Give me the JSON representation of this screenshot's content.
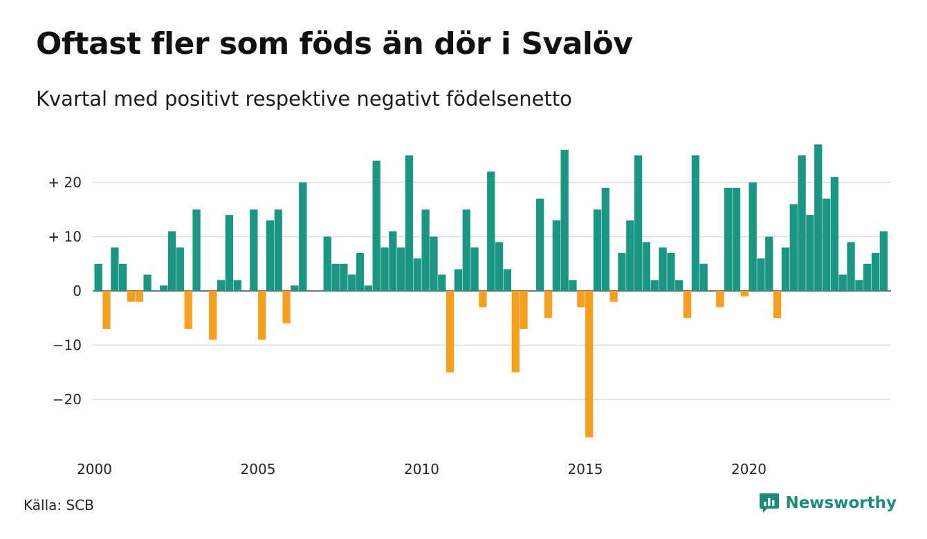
{
  "title": "Oftast fler som föds än dör i Svalöv",
  "subtitle": "Kvartal med positivt respektive negativt födelsenetto",
  "source": "Källa: SCB",
  "brand": {
    "name": "Newsworthy",
    "icon": "newsworthy-logo-icon"
  },
  "colors": {
    "positive": "#1a9683",
    "negative": "#f5a01f",
    "grid": "#dcdcdc",
    "axis": "#222222"
  },
  "chart_data": {
    "type": "bar",
    "title": "Oftast fler som föds än dör i Svalöv",
    "subtitle": "Kvartal med positivt respektive negativt födelsenetto",
    "x_ticks": [
      "2000",
      "2005",
      "2010",
      "2015",
      "2020"
    ],
    "y_ticks": [
      {
        "value": 20,
        "label": "+ 20"
      },
      {
        "value": 10,
        "label": "+ 10"
      },
      {
        "value": 0,
        "label": "0"
      },
      {
        "value": -10,
        "label": "−10"
      },
      {
        "value": -20,
        "label": "−20"
      }
    ],
    "ylim": [
      -28,
      28
    ],
    "xlim": [
      2000,
      2024.25
    ],
    "grid": true,
    "series": [
      {
        "start_year": 2000,
        "values_by_year": {
          "2000": [
            5,
            -7,
            8,
            5
          ],
          "2001": [
            -2,
            -2,
            3,
            0
          ],
          "2002": [
            1,
            11,
            8,
            -7
          ],
          "2003": [
            15,
            0,
            -9,
            2
          ],
          "2004": [
            14,
            2,
            0,
            15
          ],
          "2005": [
            -9,
            13,
            15,
            -6
          ],
          "2006": [
            1,
            20,
            0,
            0
          ],
          "2007": [
            10,
            5,
            5,
            3
          ],
          "2008": [
            7,
            1,
            24,
            8
          ],
          "2009": [
            11,
            8,
            25,
            6
          ],
          "2010": [
            15,
            10,
            3,
            -15
          ],
          "2011": [
            4,
            15,
            8,
            -3
          ],
          "2012": [
            22,
            9,
            4,
            -15
          ],
          "2013": [
            -7,
            0,
            17,
            -5
          ],
          "2014": [
            13,
            26,
            2,
            -3
          ],
          "2015": [
            -27,
            15,
            19,
            -2
          ],
          "2016": [
            7,
            13,
            25,
            9
          ],
          "2017": [
            2,
            8,
            7,
            2
          ],
          "2018": [
            -5,
            25,
            5,
            0
          ],
          "2019": [
            -3,
            19,
            19,
            -1
          ],
          "2020": [
            20,
            6,
            10,
            -5
          ],
          "2021": [
            8,
            16,
            25,
            14
          ],
          "2022": [
            27,
            17,
            21,
            3
          ],
          "2023": [
            9,
            2,
            5,
            7
          ],
          "2024": [
            11
          ]
        }
      }
    ]
  }
}
